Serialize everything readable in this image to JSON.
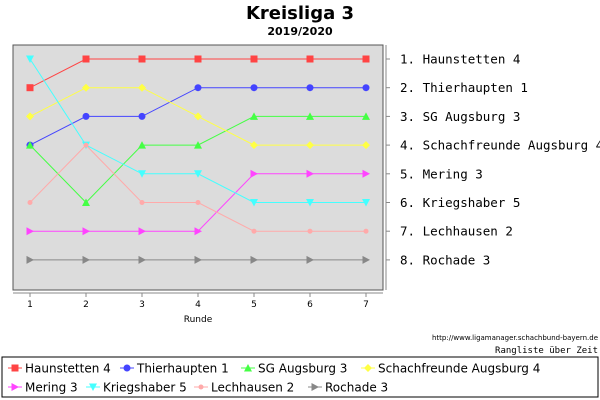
{
  "chart_data": {
    "type": "line",
    "title": "Kreisliga 3",
    "subtitle": "2019/2020",
    "xlabel": "Runde",
    "ylabel": "",
    "x": [
      1,
      2,
      3,
      4,
      5,
      6,
      7
    ],
    "ylim": [
      1,
      8
    ],
    "y_inverted": true,
    "grid": false,
    "legend_position": "bottom",
    "rank_labels": [
      "1. Haunstetten 4",
      "2. Thierhaupten 1",
      "3. SG Augsburg 3",
      "4. Schachfreunde Augsburg 4",
      "5. Mering 3",
      "6. Kriegshaber 5",
      "7. Lechhausen 2",
      "8. Rochade 3"
    ],
    "series": [
      {
        "name": "Haunstetten 4",
        "color": "#ff4444",
        "marker": "square",
        "values": [
          2,
          1,
          1,
          1,
          1,
          1,
          1
        ]
      },
      {
        "name": "Thierhaupten 1",
        "color": "#4444ff",
        "marker": "circle",
        "values": [
          4,
          3,
          3,
          2,
          2,
          2,
          2
        ]
      },
      {
        "name": "SG Augsburg 3",
        "color": "#44ff44",
        "marker": "triangle-up",
        "values": [
          4,
          6,
          4,
          4,
          3,
          3,
          3
        ]
      },
      {
        "name": "Schachfreunde Augsburg 4",
        "color": "#ffff44",
        "marker": "diamond",
        "values": [
          3,
          2,
          2,
          3,
          4,
          4,
          4
        ]
      },
      {
        "name": "Mering 3",
        "color": "#ff44ff",
        "marker": "triangle-right",
        "values": [
          7,
          7,
          7,
          7,
          5,
          5,
          5
        ]
      },
      {
        "name": "Kriegshaber 5",
        "color": "#44ffff",
        "marker": "triangle-down",
        "values": [
          1,
          4,
          5,
          5,
          6,
          6,
          6
        ]
      },
      {
        "name": "Lechhausen 2",
        "color": "#ffaaaa",
        "marker": "circle-small",
        "values": [
          6,
          4,
          6,
          6,
          7,
          7,
          7
        ]
      },
      {
        "name": "Rochade 3",
        "color": "#888888",
        "marker": "triangle-right",
        "values": [
          8,
          8,
          8,
          8,
          8,
          8,
          8
        ]
      }
    ]
  },
  "footer": {
    "source": "http://www.ligamanager.schachbund-bayern.de",
    "note": "Rangliste über Zeit"
  },
  "colors": {
    "plot_background": "#dcdcdc"
  }
}
